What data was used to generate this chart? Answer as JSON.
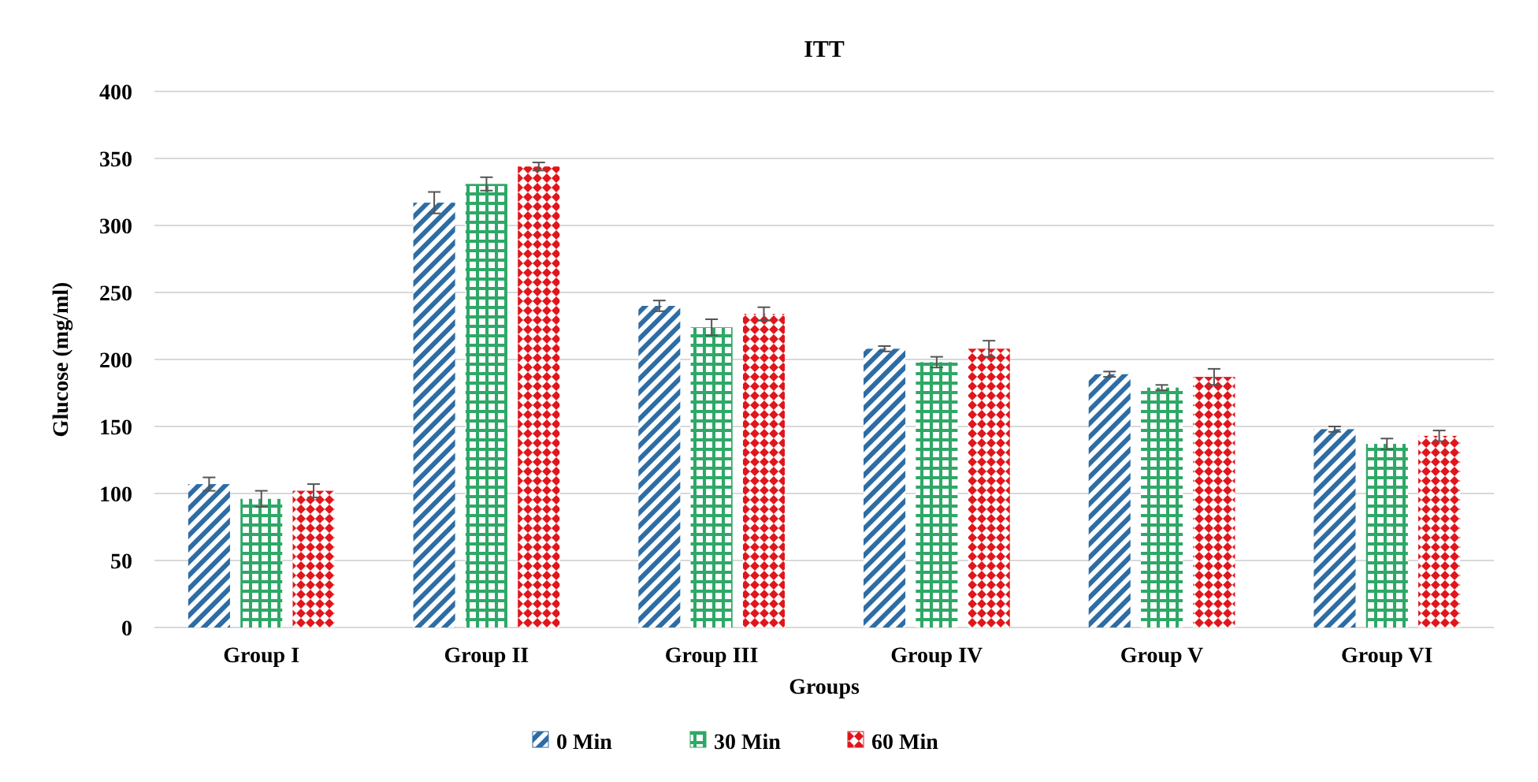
{
  "chart_data": {
    "type": "bar",
    "title": "ITT",
    "xlabel": "Groups",
    "ylabel": "Glucose (mg/ml)",
    "categories": [
      "Group I",
      "Group II",
      "Group III",
      "Group IV",
      "Group V",
      "Group VI"
    ],
    "series": [
      {
        "name": "0 Min",
        "color": "#2e6da4",
        "values": [
          107,
          317,
          240,
          208,
          189,
          148
        ],
        "errors": [
          5,
          8,
          4,
          2,
          2,
          2
        ]
      },
      {
        "name": "30 Min",
        "color": "#2ea866",
        "values": [
          96,
          331,
          224,
          198,
          179,
          137
        ],
        "errors": [
          6,
          5,
          6,
          4,
          2,
          4
        ]
      },
      {
        "name": "60 Min",
        "color": "#e0161c",
        "values": [
          102,
          344,
          234,
          208,
          187,
          143
        ],
        "errors": [
          5,
          3,
          5,
          6,
          6,
          4
        ]
      }
    ],
    "ylim": [
      0,
      400
    ],
    "yticks": [
      0,
      50,
      100,
      150,
      200,
      250,
      300,
      350,
      400
    ],
    "grid": "y",
    "legend": "bottom"
  }
}
